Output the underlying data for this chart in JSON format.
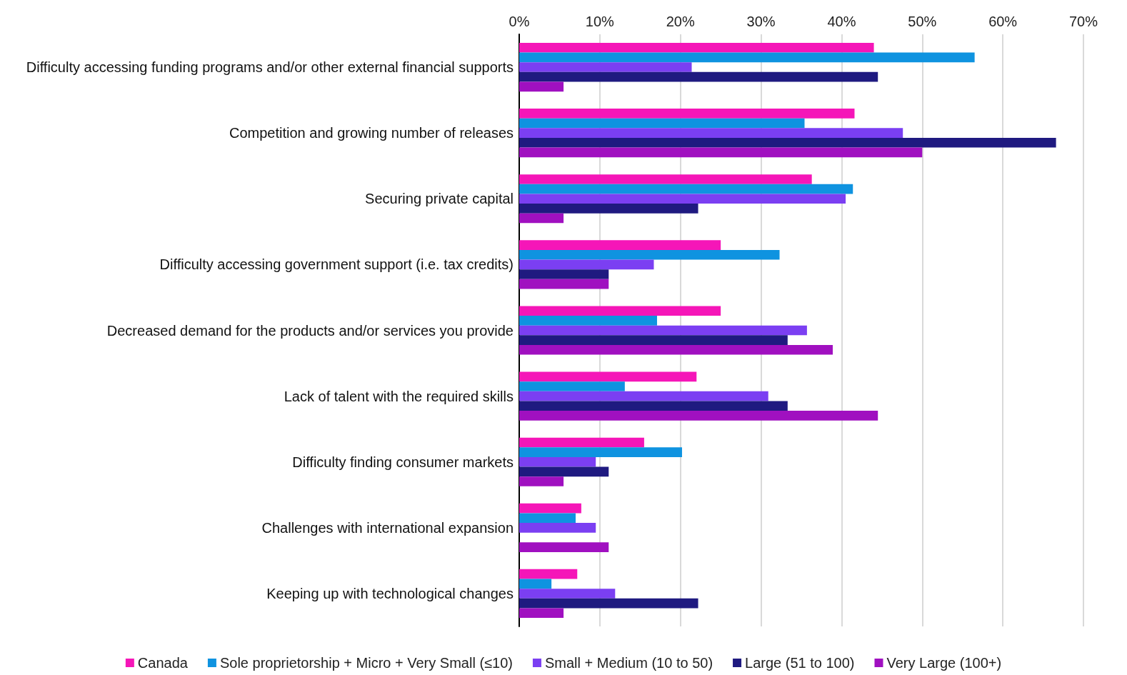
{
  "chart_data": {
    "type": "bar",
    "orientation": "horizontal",
    "categories": [
      "Difficulty accessing funding programs and/or other external financial supports",
      "Competition and growing number of releases",
      "Securing private capital",
      "Difficulty accessing government support (i.e. tax credits)",
      "Decreased demand for the products and/or services you provide",
      "Lack of talent with the required skills",
      "Difficulty finding consumer markets",
      "Challenges with international expansion",
      "Keeping up with technological changes"
    ],
    "series": [
      {
        "name": "Canada",
        "color": "#f516b8",
        "values": [
          44.0,
          41.6,
          36.3,
          25.0,
          25.0,
          22.0,
          15.5,
          7.7,
          7.2
        ]
      },
      {
        "name": "Sole proprietorship + Micro + Very Small (≤10)",
        "color": "#0f93e0",
        "values": [
          56.5,
          35.4,
          41.4,
          32.3,
          17.1,
          13.1,
          20.2,
          7.0,
          4.0
        ]
      },
      {
        "name": "Small + Medium (10 to 50)",
        "color": "#7b3ff2",
        "values": [
          21.4,
          47.6,
          40.5,
          16.7,
          35.7,
          30.9,
          9.5,
          9.5,
          11.9
        ]
      },
      {
        "name": "Large (51 to 100)",
        "color": "#1f1a80",
        "values": [
          44.5,
          66.6,
          22.2,
          11.1,
          33.3,
          33.3,
          11.1,
          0,
          22.2
        ]
      },
      {
        "name": "Very Large (100+)",
        "color": "#a010c0",
        "values": [
          5.5,
          50.0,
          5.5,
          11.1,
          38.9,
          44.5,
          5.5,
          11.1,
          5.5
        ]
      }
    ],
    "xlim": [
      0,
      70
    ],
    "xticks": [
      {
        "value": 0,
        "label": "0%"
      },
      {
        "value": 10,
        "label": "10%"
      },
      {
        "value": 20,
        "label": "20%"
      },
      {
        "value": 30,
        "label": "30%"
      },
      {
        "value": 40,
        "label": "40%"
      },
      {
        "value": 50,
        "label": "50%"
      },
      {
        "value": 60,
        "label": "60%"
      },
      {
        "value": 70,
        "label": "70%"
      }
    ],
    "grid": "x",
    "legend": "bottom"
  }
}
